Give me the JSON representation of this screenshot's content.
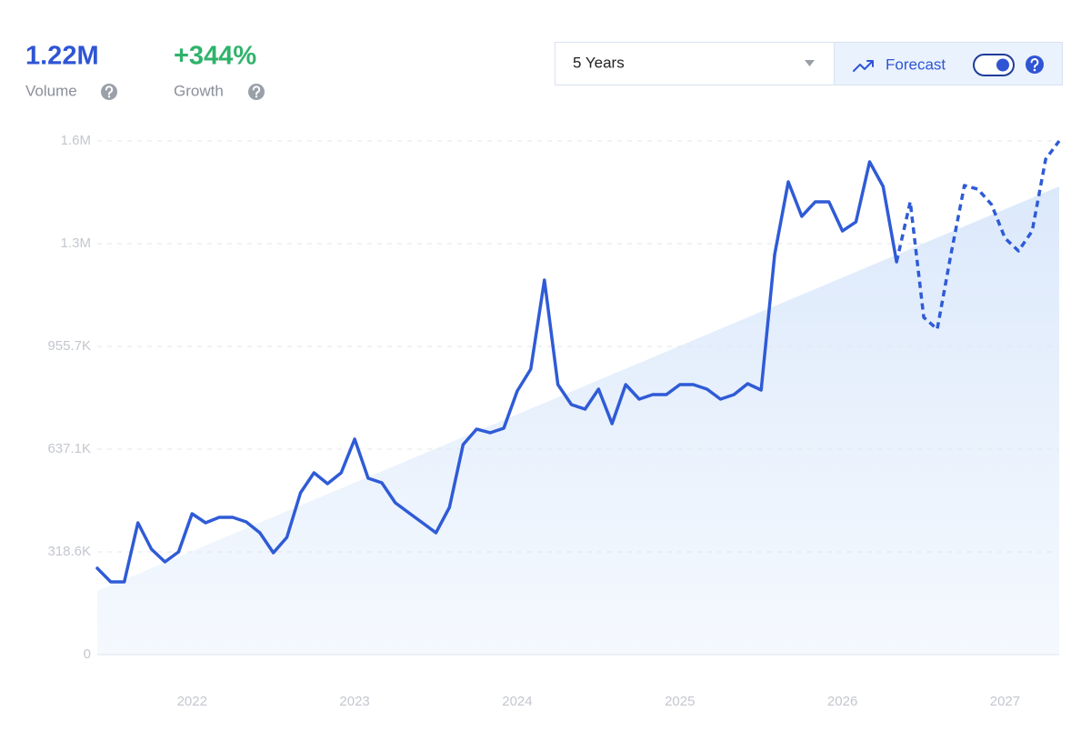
{
  "header": {
    "volume": {
      "value": "1.22M",
      "label": "Volume"
    },
    "growth": {
      "value": "+344%",
      "label": "Growth"
    }
  },
  "controls": {
    "range": "5 Years",
    "forecast": "Forecast"
  },
  "chart_data": {
    "type": "line",
    "xlim": [
      2021.417,
      2027.333
    ],
    "xticks": [
      2022,
      2023,
      2024,
      2025,
      2026,
      2027
    ],
    "ylim": [
      0,
      1592850
    ],
    "yticks": [
      0,
      {
        "value": 318570,
        "label": "318.6K"
      },
      {
        "value": 637140,
        "label": "637.1K"
      },
      {
        "value": 955710,
        "label": "955.7K"
      },
      {
        "value": 1274280,
        "label": "1.3M"
      },
      {
        "value": 1592850,
        "label": "1.6M"
      }
    ],
    "grid": true,
    "series": [
      {
        "color": "#2f5bd6",
        "dashed": false,
        "x": [
          2021.417,
          2021.5,
          2021.583,
          2021.667,
          2021.75,
          2021.833,
          2021.917,
          2022.0,
          2022.083,
          2022.167,
          2022.25,
          2022.333,
          2022.417,
          2022.5,
          2022.583,
          2022.667,
          2022.75,
          2022.833,
          2022.917,
          2023.0,
          2023.083,
          2023.167,
          2023.25,
          2023.333,
          2023.417,
          2023.5,
          2023.583,
          2023.667,
          2023.75,
          2023.833,
          2023.917,
          2024.0,
          2024.083,
          2024.167,
          2024.25,
          2024.333,
          2024.417,
          2024.5,
          2024.583,
          2024.667,
          2024.75,
          2024.833,
          2024.917,
          2025.0,
          2025.083,
          2025.167,
          2025.25,
          2025.333,
          2025.417,
          2025.5,
          2025.583,
          2025.667,
          2025.75,
          2025.833,
          2025.917,
          2026.0,
          2026.083,
          2026.167,
          2026.25,
          2026.333
        ],
        "values": [
          267800,
          225500,
          225500,
          408800,
          327000,
          287600,
          318600,
          437000,
          408800,
          425700,
          425700,
          411600,
          377800,
          315800,
          363700,
          501800,
          563800,
          530000,
          563800,
          668200,
          546900,
          532800,
          470800,
          439800,
          408800,
          377800,
          456700,
          651200,
          699200,
          687900,
          702000,
          817600,
          885200,
          1161500,
          837300,
          775300,
          761200,
          823200,
          716100,
          837300,
          792200,
          806300,
          806300,
          837300,
          837300,
          823200,
          792200,
          806300,
          840100,
          820400,
          1240400,
          1466000,
          1358900,
          1404000,
          1404000,
          1313700,
          1341900,
          1528000,
          1451900,
          1217900
        ]
      },
      {
        "color": "#2f5bd6",
        "dashed": true,
        "x": [
          2026.333,
          2026.417,
          2026.5,
          2026.583,
          2026.667,
          2026.75,
          2026.833,
          2026.917,
          2027.0,
          2027.083,
          2027.167,
          2027.25,
          2027.333
        ],
        "values": [
          1217900,
          1404000,
          1045900,
          1009300,
          1240400,
          1454700,
          1443400,
          1395500,
          1291200,
          1251700,
          1313700,
          1536500,
          1592800
        ]
      },
      {
        "color": "#e3eefc",
        "area": true,
        "x": [
          2021.417,
          2027.333
        ],
        "values": [
          197300,
          1451900
        ]
      }
    ]
  }
}
